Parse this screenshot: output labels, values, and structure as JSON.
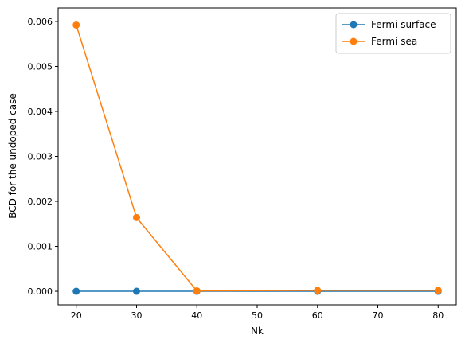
{
  "chart_data": {
    "type": "line",
    "title": "",
    "xlabel": "Nk",
    "ylabel": "BCD for the undoped case",
    "x": [
      20,
      30,
      40,
      60,
      80
    ],
    "xlim": [
      17,
      83
    ],
    "ylim": [
      -0.0003,
      0.0063
    ],
    "x_ticks": [
      20,
      30,
      40,
      50,
      60,
      70,
      80
    ],
    "x_tick_labels": [
      "20",
      "30",
      "40",
      "50",
      "60",
      "70",
      "80"
    ],
    "y_ticks": [
      0.0,
      0.001,
      0.002,
      0.003,
      0.004,
      0.005,
      0.006
    ],
    "y_tick_labels": [
      "0.000",
      "0.001",
      "0.002",
      "0.003",
      "0.004",
      "0.005",
      "0.006"
    ],
    "grid": false,
    "legend_position": "top-right",
    "marker": "circle",
    "series": [
      {
        "name": "Fermi surface",
        "color": "#1f77b4",
        "values": [
          0.0,
          0.0,
          0.0,
          0.0,
          0.0
        ]
      },
      {
        "name": "Fermi sea",
        "color": "#ff7f0e",
        "values": [
          0.00592,
          0.00164,
          1e-05,
          2e-05,
          2e-05
        ]
      }
    ]
  }
}
